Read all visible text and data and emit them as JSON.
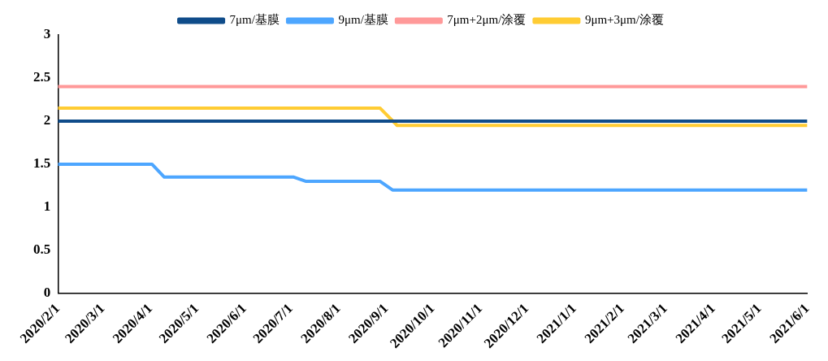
{
  "chart_data": {
    "type": "line",
    "xlim": [
      "2020-02-01",
      "2021-06-01"
    ],
    "xticks": [
      {
        "value": "2020-02-01",
        "label": "2020/2/1"
      },
      {
        "value": "2020-03-01",
        "label": "2020/3/1"
      },
      {
        "value": "2020-04-01",
        "label": "2020/4/1"
      },
      {
        "value": "2020-05-01",
        "label": "2020/5/1"
      },
      {
        "value": "2020-06-01",
        "label": "2020/6/1"
      },
      {
        "value": "2020-07-01",
        "label": "2020/7/1"
      },
      {
        "value": "2020-08-01",
        "label": "2020/8/1"
      },
      {
        "value": "2020-09-01",
        "label": "2020/9/1"
      },
      {
        "value": "2020-10-01",
        "label": "2020/10/1"
      },
      {
        "value": "2020-11-01",
        "label": "2020/11/1"
      },
      {
        "value": "2020-12-01",
        "label": "2020/12/1"
      },
      {
        "value": "2021-01-01",
        "label": "2021/1/1"
      },
      {
        "value": "2021-02-01",
        "label": "2021/2/1"
      },
      {
        "value": "2021-03-01",
        "label": "2021/3/1"
      },
      {
        "value": "2021-04-01",
        "label": "2021/4/1"
      },
      {
        "value": "2021-05-01",
        "label": "2021/5/1"
      },
      {
        "value": "2021-06-01",
        "label": "2021/6/1"
      }
    ],
    "ylim": [
      0,
      3
    ],
    "yticks": [
      0,
      0.5,
      1,
      1.5,
      2,
      2.5,
      3
    ],
    "grid": false,
    "legend": "top",
    "marker": "none",
    "line_style": "solid",
    "series": [
      {
        "name": "7μm/基膜",
        "color": "#0f4c8a",
        "x": [
          "2020-02-01",
          "2021-06-01"
        ],
        "values": [
          2,
          2
        ]
      },
      {
        "name": "9μm/基膜",
        "color": "#4da6ff",
        "x": [
          "2020-02-01",
          "2020-04-02",
          "2020-04-10",
          "2020-07-03",
          "2020-07-11",
          "2020-08-28",
          "2020-09-05",
          "2021-06-01"
        ],
        "values": [
          1.5,
          1.5,
          1.35,
          1.35,
          1.3,
          1.3,
          1.2,
          1.2
        ]
      },
      {
        "name": "7μm+2μm/涂覆",
        "color": "#ff9999",
        "x": [
          "2020-02-01",
          "2021-06-01"
        ],
        "values": [
          2.4,
          2.4
        ]
      },
      {
        "name": "9μm+3μm/涂覆",
        "color": "#ffcc33",
        "x": [
          "2020-02-01",
          "2020-08-28",
          "2020-09-08",
          "2021-06-01"
        ],
        "values": [
          2.15,
          2.15,
          1.95,
          1.95
        ]
      }
    ]
  }
}
